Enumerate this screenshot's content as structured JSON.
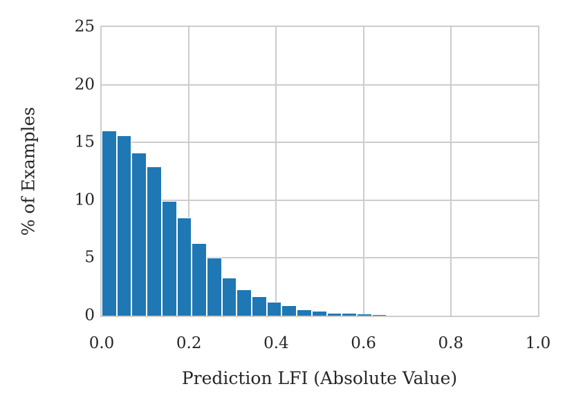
{
  "chart_data": {
    "type": "bar",
    "subtype": "histogram",
    "title": "",
    "xlabel": "Prediction LFI (Absolute Value)",
    "ylabel": "% of Examples",
    "xlim": [
      0.0,
      1.0
    ],
    "ylim": [
      0,
      25
    ],
    "xticks": [
      "0.0",
      "0.2",
      "0.4",
      "0.6",
      "0.8",
      "1.0"
    ],
    "yticks": [
      "0",
      "5",
      "10",
      "15",
      "20",
      "25"
    ],
    "grid": true,
    "legend": null,
    "bar_color": "#1f77b4",
    "edge_color": "#ffffff",
    "grid_color": "#cccccc",
    "bin_width": 0.0344,
    "bin_start": 0.0,
    "bins": [
      {
        "x_start": 0.0,
        "x_end": 0.0344,
        "value": 16.0
      },
      {
        "x_start": 0.0344,
        "x_end": 0.0688,
        "value": 15.6
      },
      {
        "x_start": 0.0688,
        "x_end": 0.1032,
        "value": 14.1
      },
      {
        "x_start": 0.1032,
        "x_end": 0.1376,
        "value": 12.9
      },
      {
        "x_start": 0.1376,
        "x_end": 0.172,
        "value": 9.9
      },
      {
        "x_start": 0.172,
        "x_end": 0.2064,
        "value": 8.5
      },
      {
        "x_start": 0.2064,
        "x_end": 0.2408,
        "value": 6.3
      },
      {
        "x_start": 0.2408,
        "x_end": 0.2752,
        "value": 5.0
      },
      {
        "x_start": 0.2752,
        "x_end": 0.3096,
        "value": 3.3
      },
      {
        "x_start": 0.3096,
        "x_end": 0.344,
        "value": 2.3
      },
      {
        "x_start": 0.344,
        "x_end": 0.3784,
        "value": 1.7
      },
      {
        "x_start": 0.3784,
        "x_end": 0.4128,
        "value": 1.2
      },
      {
        "x_start": 0.4128,
        "x_end": 0.4472,
        "value": 0.9
      },
      {
        "x_start": 0.4472,
        "x_end": 0.4816,
        "value": 0.55
      },
      {
        "x_start": 0.4816,
        "x_end": 0.516,
        "value": 0.42
      },
      {
        "x_start": 0.516,
        "x_end": 0.5504,
        "value": 0.24
      },
      {
        "x_start": 0.5504,
        "x_end": 0.5848,
        "value": 0.22
      },
      {
        "x_start": 0.5848,
        "x_end": 0.6192,
        "value": 0.1
      },
      {
        "x_start": 0.6192,
        "x_end": 0.6536,
        "value": 0.02
      },
      {
        "x_start": 0.6536,
        "x_end": 0.688,
        "value": 0.01
      }
    ]
  }
}
